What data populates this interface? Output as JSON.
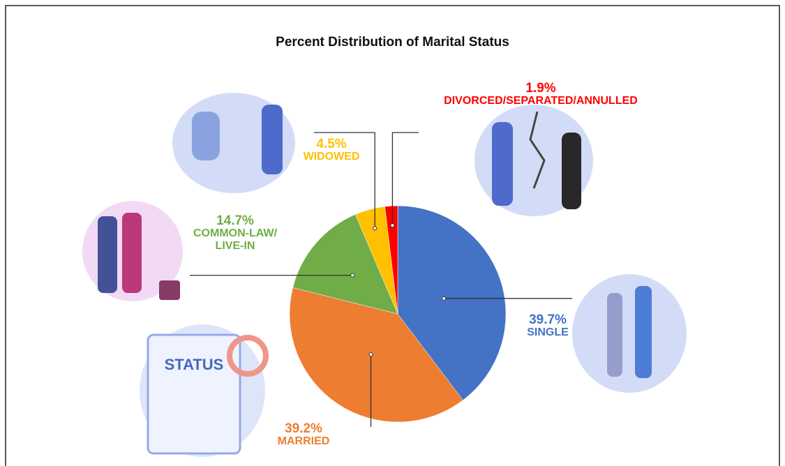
{
  "chart_data": {
    "type": "pie",
    "title": "Percent Distribution of Marital Status",
    "categories": [
      "SINGLE",
      "MARRIED",
      "COMMON-LAW/ LIVE-IN",
      "WIDOWED",
      "DIVORCED/SEPARATED/ANNULLED"
    ],
    "values": [
      39.7,
      39.2,
      14.7,
      4.5,
      1.9
    ],
    "value_labels": [
      "39.7%",
      "39.2%",
      "14.7%",
      "4.5%",
      "1.9%"
    ],
    "colors": [
      "#4472c4",
      "#ed7d31",
      "#70ad47",
      "#ffc000",
      "#ff0000"
    ],
    "label_colors": [
      "#4472c4",
      "#ed7d31",
      "#70ad47",
      "#ffc000",
      "#ff0000"
    ]
  }
}
